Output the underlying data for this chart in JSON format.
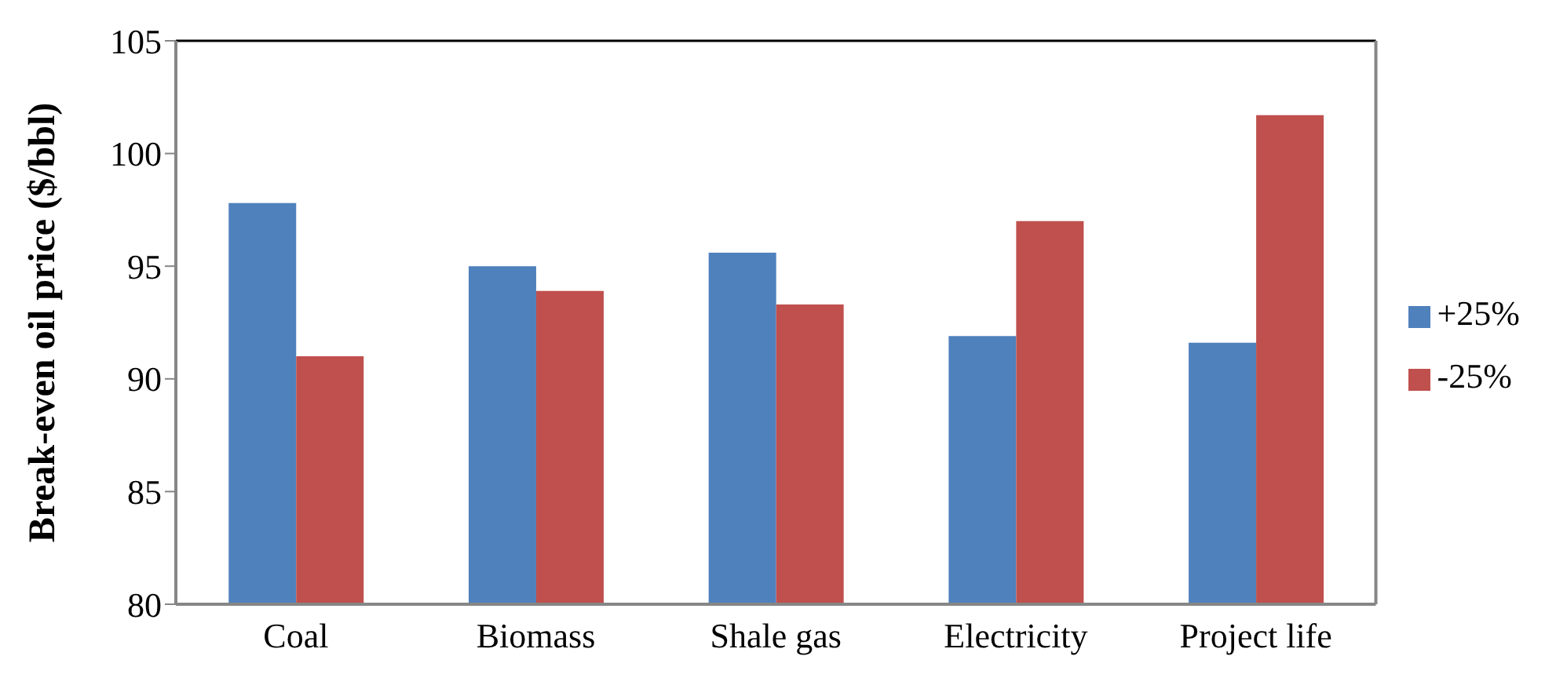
{
  "chart_data": {
    "type": "bar",
    "ylabel": "Break-even oil price ($/bbl)",
    "categories": [
      "Coal",
      "Biomass",
      "Shale gas",
      "Electricity",
      "Project life"
    ],
    "series": [
      {
        "name": "+25%",
        "color": "#4f81bd",
        "values": [
          97.8,
          95.0,
          95.6,
          91.9,
          91.6
        ]
      },
      {
        "name": "-25%",
        "color": "#c0504d",
        "values": [
          91.0,
          93.9,
          93.3,
          97.0,
          101.7
        ]
      }
    ],
    "ylim": [
      80,
      105
    ],
    "yticks": [
      80,
      85,
      90,
      95,
      100,
      105
    ],
    "grid": false,
    "legend": "right"
  }
}
